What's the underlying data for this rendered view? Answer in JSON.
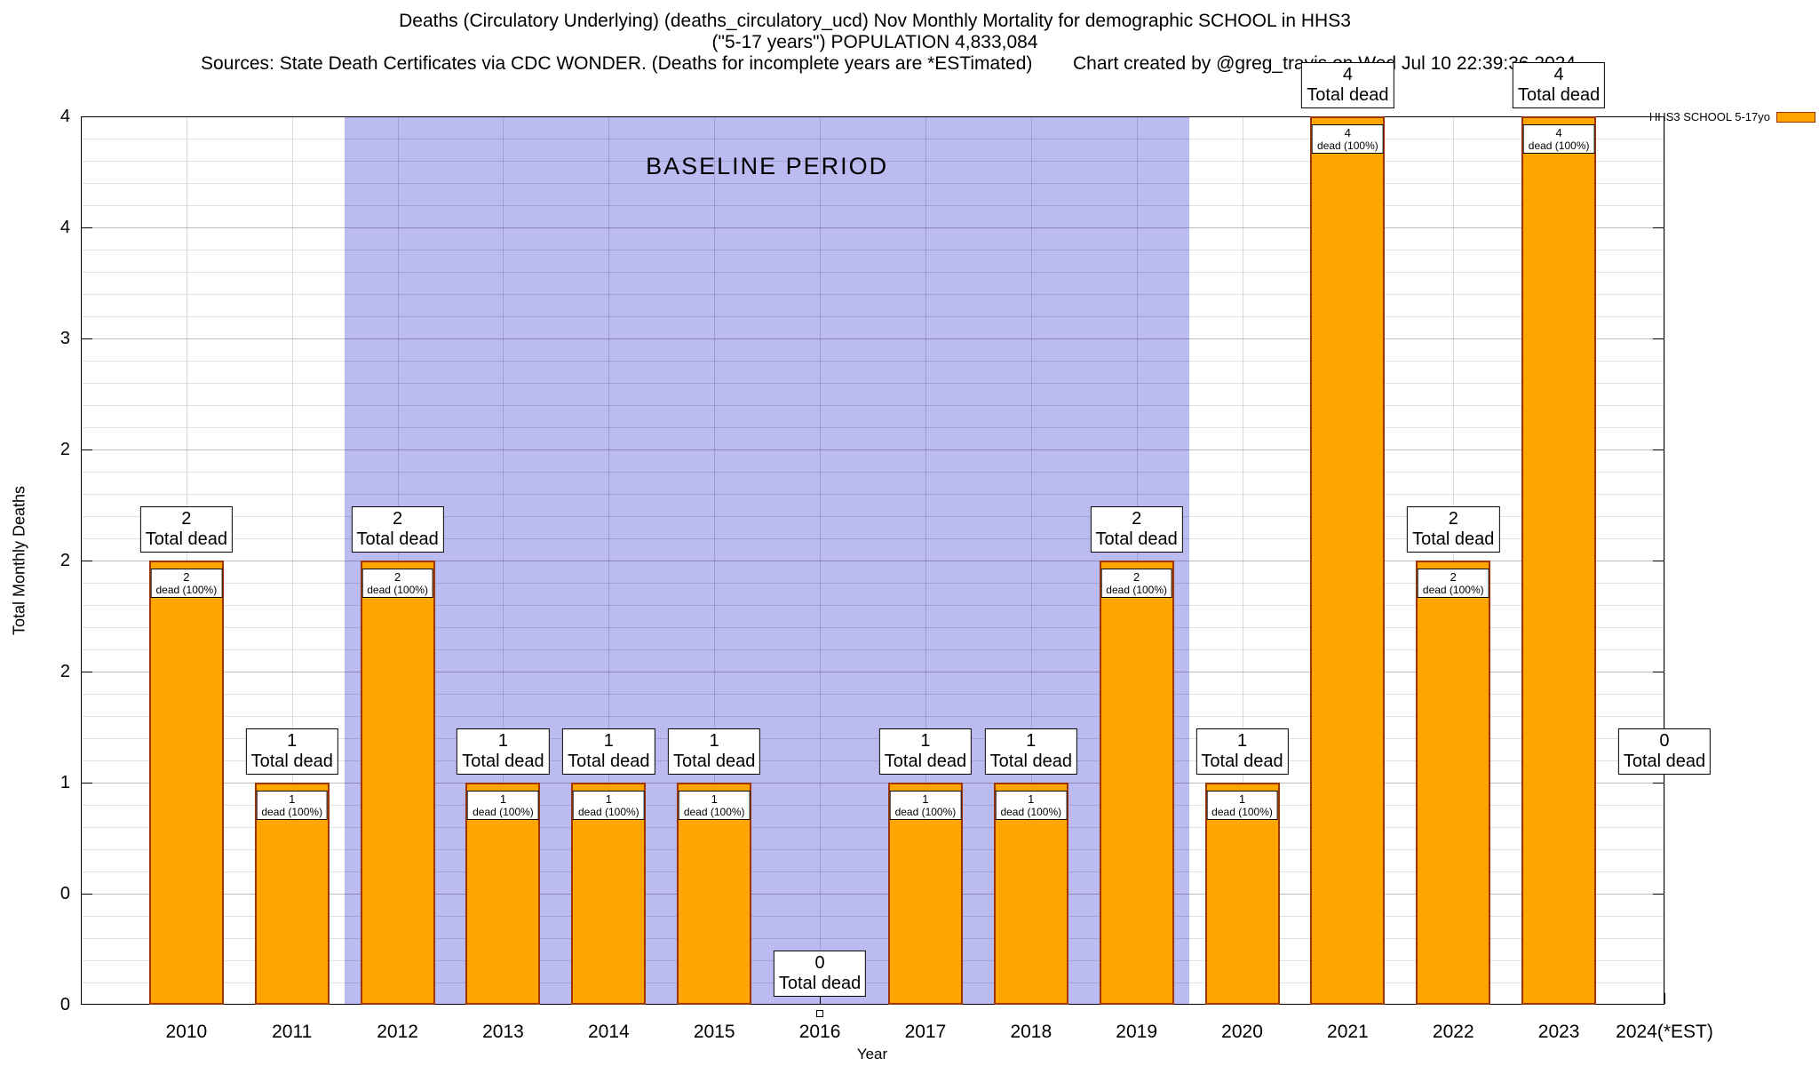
{
  "header": {
    "sources": "Sources: State Death Certificates via CDC WONDER. (Deaths for incomplete years are *ESTimated)",
    "credit": "Chart created by @greg_travis on Wed Jul 10 22:39:36 2024"
  },
  "legend": {
    "label": "HHS3 SCHOOL 5-17yo"
  },
  "chart_data": {
    "type": "bar",
    "title": "Deaths (Circulatory Underlying) (deaths_circulatory_ucd) Nov Monthly Mortality for demographic SCHOOL in HHS3",
    "subtitle": "(\"5-17 years\") POPULATION 4,833,084",
    "xlabel": "Year",
    "ylabel": "Total Monthly Deaths",
    "ylim": [
      0,
      4
    ],
    "x_range_years": [
      2009,
      2024
    ],
    "categories": [
      "2010",
      "2011",
      "2012",
      "2013",
      "2014",
      "2015",
      "2016",
      "2017",
      "2018",
      "2019",
      "2020",
      "2021",
      "2022",
      "2023",
      "2024(*EST)"
    ],
    "values": [
      2,
      1,
      2,
      1,
      1,
      1,
      0,
      1,
      1,
      2,
      1,
      4,
      2,
      4,
      0
    ],
    "bar_total_label": "Total dead",
    "bar_inner_label": "dead (100%)",
    "total_label_height_units": [
      2,
      1,
      2,
      1,
      1,
      1,
      0,
      1,
      1,
      2,
      1,
      4,
      2,
      4,
      1
    ],
    "y_tick_labels_top_to_bottom": [
      "4",
      "4",
      "3",
      "2",
      "2",
      "2",
      "1",
      "0",
      "0"
    ],
    "grid": true,
    "legend_position": "top-right-outside",
    "baseline_band": {
      "label": "BASELINE PERIOD",
      "from_year": 2011.5,
      "to_year": 2019.5,
      "color": "#bbbbf2"
    },
    "colors": {
      "bar_fill": "#FFA500",
      "bar_border": "#A03300",
      "band": "#bbbbf2"
    }
  }
}
